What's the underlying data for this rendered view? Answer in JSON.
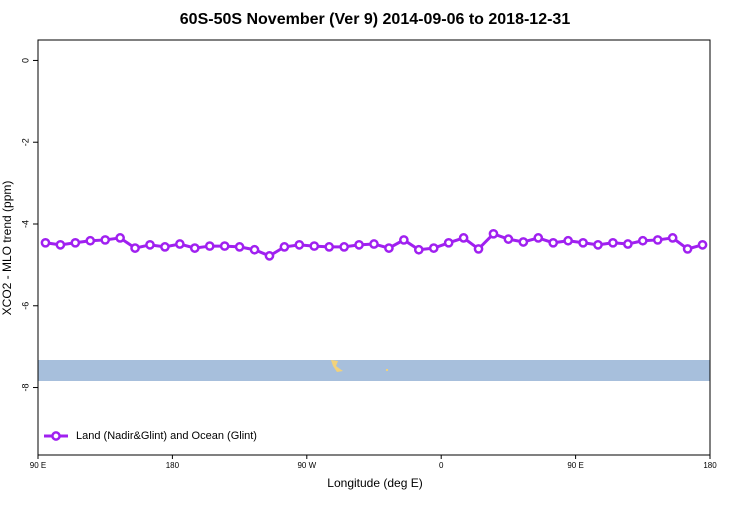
{
  "chart_data": {
    "type": "line",
    "title": "60S-50S November (Ver 9)   2014-09-06 to 2018-12-31",
    "x_label": "Longitude (deg E)",
    "y_label": "XCO2 - MLO trend (ppm)",
    "x": [
      95,
      105,
      115,
      125,
      135,
      145,
      155,
      165,
      175,
      185,
      195,
      205,
      215,
      225,
      235,
      245,
      255,
      265,
      275,
      285,
      295,
      305,
      315,
      325,
      335,
      345,
      355,
      365,
      375,
      385,
      395,
      405,
      415,
      425,
      435,
      445,
      455,
      465,
      475,
      485,
      495,
      505,
      515,
      525,
      535
    ],
    "series": [
      {
        "name": "Land (Nadir&Glint) and Ocean (Glint)",
        "color": "#a020f0",
        "values": [
          -4.46,
          -4.51,
          -4.46,
          -4.41,
          -4.39,
          -4.34,
          -4.59,
          -4.51,
          -4.56,
          -4.49,
          -4.59,
          -4.54,
          -4.54,
          -4.56,
          -4.63,
          -4.78,
          -4.56,
          -4.51,
          -4.54,
          -4.56,
          -4.56,
          -4.51,
          -4.49,
          -4.59,
          -4.39,
          -4.63,
          -4.59,
          -4.46,
          -4.34,
          -4.61,
          -4.24,
          -4.37,
          -4.44,
          -4.34,
          -4.46,
          -4.41,
          -4.46,
          -4.51,
          -4.46,
          -4.49,
          -4.41,
          -4.39,
          -4.34,
          -4.61,
          -4.51
        ]
      }
    ],
    "xlim": [
      90,
      540
    ],
    "xticks": [
      {
        "value": 90,
        "label": "90 E"
      },
      {
        "value": 180,
        "label": "180"
      },
      {
        "value": 270,
        "label": "90 W"
      },
      {
        "value": 360,
        "label": "0"
      },
      {
        "value": 450,
        "label": "90 E"
      },
      {
        "value": 540,
        "label": "180"
      }
    ],
    "ylim": [
      -9.65,
      0.5
    ],
    "yticks": [
      0,
      -2,
      -4,
      -6,
      -8
    ],
    "legend": "bottom-left"
  }
}
